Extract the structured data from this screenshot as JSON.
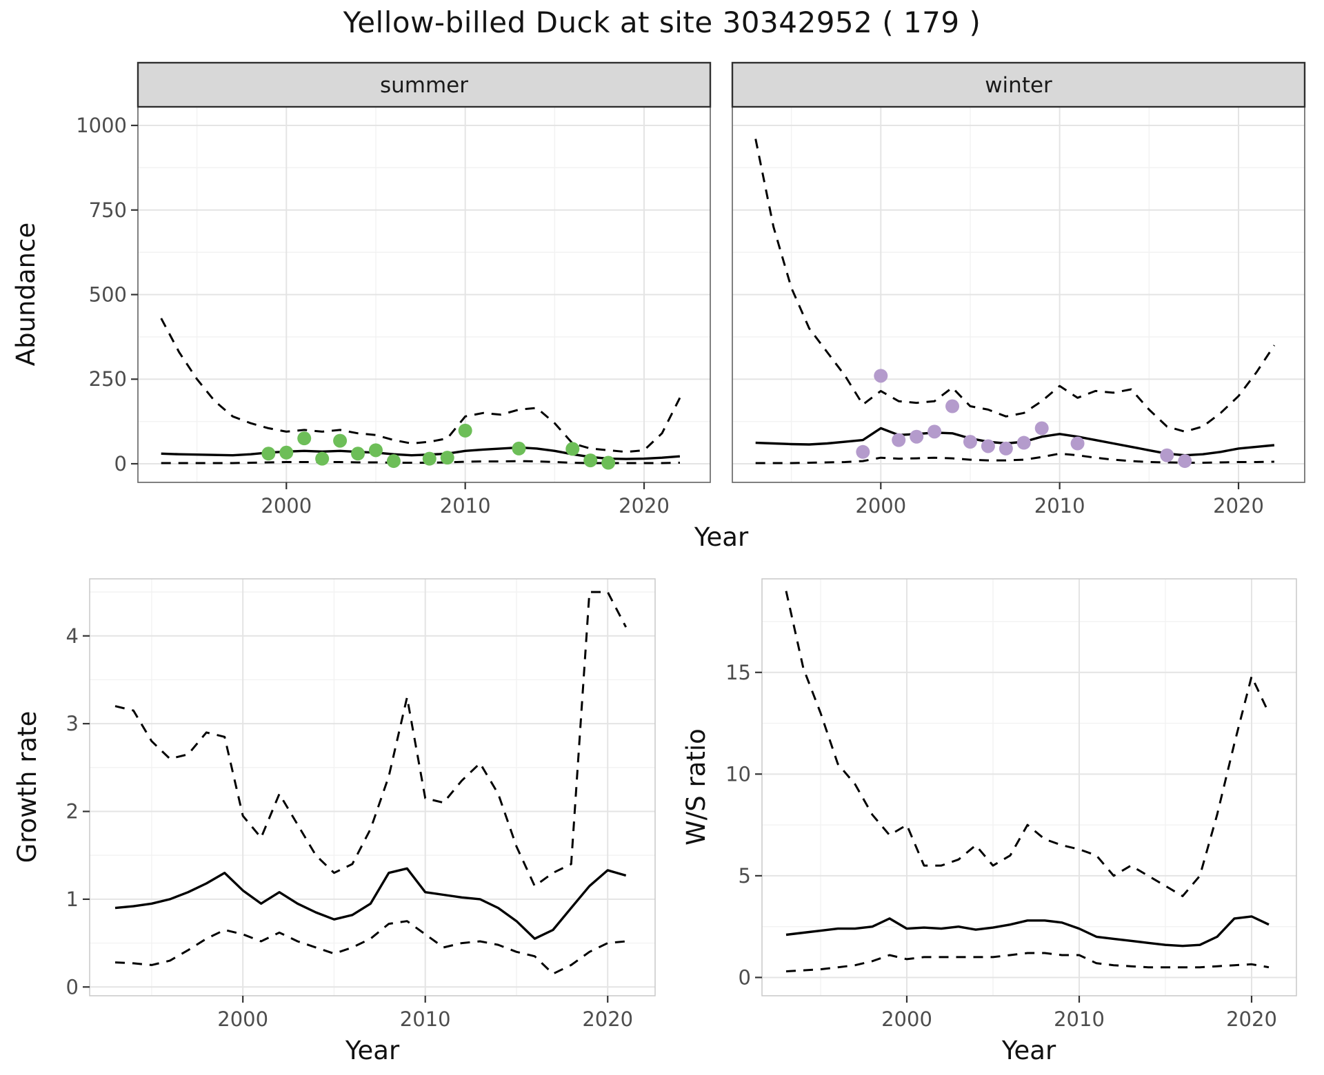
{
  "figure": {
    "title": "Yellow-billed Duck at site 30342952 ( 179 )",
    "colors": {
      "line": "#000000",
      "summer_points": "#6DBE58",
      "winter_points": "#B49BCC",
      "strip_bg": "#D8D8D8",
      "strip_border": "#2F2F2F",
      "panel_border_top": "#6A6A6A",
      "panel_border_bottom": "#C8C8C8",
      "grid_major": "#E4E4E4",
      "grid_minor": "#F2F2F2",
      "tick_mark": "#333333",
      "tick_text": "#4D4D4D",
      "axis_label": "#111111"
    }
  },
  "chart_data": [
    {
      "id": "abundance-summer",
      "type": "line",
      "facet": "summer",
      "title": "",
      "xlabel": "Year",
      "ylabel": "Abundance",
      "xlim": [
        1991.7,
        2023.7
      ],
      "ylim": [
        -55,
        1055
      ],
      "x_ticks": [
        2000,
        2010,
        2020
      ],
      "y_ticks": [
        0,
        250,
        500,
        750,
        1000
      ],
      "x_minor": [
        1995,
        2005,
        2015
      ],
      "y_minor": [
        125,
        375,
        625,
        875
      ],
      "x": [
        1993,
        1994,
        1995,
        1996,
        1997,
        1998,
        1999,
        2000,
        2001,
        2002,
        2003,
        2004,
        2005,
        2006,
        2007,
        2008,
        2009,
        2010,
        2011,
        2012,
        2013,
        2014,
        2015,
        2016,
        2017,
        2018,
        2019,
        2020,
        2021,
        2022
      ],
      "series": [
        {
          "name": "upper_95ci",
          "style": "dashed",
          "color": "#000000",
          "y": [
            430,
            330,
            250,
            185,
            140,
            120,
            105,
            95,
            100,
            95,
            100,
            90,
            85,
            70,
            60,
            65,
            75,
            140,
            150,
            145,
            160,
            165,
            120,
            60,
            45,
            40,
            35,
            40,
            90,
            195
          ]
        },
        {
          "name": "median",
          "style": "solid",
          "color": "#000000",
          "y": [
            30,
            28,
            27,
            26,
            25,
            28,
            33,
            36,
            38,
            36,
            38,
            35,
            33,
            28,
            25,
            27,
            30,
            38,
            42,
            45,
            48,
            45,
            38,
            28,
            20,
            15,
            14,
            15,
            18,
            22
          ]
        },
        {
          "name": "lower_95ci",
          "style": "dashed",
          "color": "#000000",
          "y": [
            2,
            2,
            2,
            2,
            2,
            3,
            4,
            5,
            5,
            5,
            5,
            4,
            4,
            3,
            3,
            3,
            4,
            6,
            7,
            7,
            8,
            7,
            5,
            3,
            2,
            2,
            2,
            2,
            2,
            3
          ]
        },
        {
          "name": "observed_counts",
          "style": "points",
          "color": "#6DBE58",
          "x": [
            1999,
            2000,
            2001,
            2002,
            2003,
            2004,
            2005,
            2006,
            2008,
            2009,
            2010,
            2013,
            2016,
            2017,
            2018
          ],
          "y": [
            30,
            33,
            75,
            15,
            68,
            30,
            40,
            8,
            15,
            18,
            98,
            45,
            44,
            10,
            3
          ]
        }
      ]
    },
    {
      "id": "abundance-winter",
      "type": "line",
      "facet": "winter",
      "title": "",
      "xlabel": "Year",
      "ylabel": "Abundance",
      "xlim": [
        1991.7,
        2023.7
      ],
      "ylim": [
        -55,
        1055
      ],
      "x_ticks": [
        2000,
        2010,
        2020
      ],
      "y_ticks": [
        0,
        250,
        500,
        750,
        1000
      ],
      "x_minor": [
        1995,
        2005,
        2015
      ],
      "y_minor": [
        125,
        375,
        625,
        875
      ],
      "x": [
        1993,
        1994,
        1995,
        1996,
        1997,
        1998,
        1999,
        2000,
        2001,
        2002,
        2003,
        2004,
        2005,
        2006,
        2007,
        2008,
        2009,
        2010,
        2011,
        2012,
        2013,
        2014,
        2015,
        2016,
        2017,
        2018,
        2019,
        2020,
        2021,
        2022
      ],
      "series": [
        {
          "name": "upper_95ci",
          "style": "dashed",
          "color": "#000000",
          "y": [
            960,
            700,
            520,
            400,
            330,
            260,
            175,
            215,
            185,
            180,
            185,
            225,
            170,
            160,
            140,
            150,
            185,
            230,
            195,
            215,
            210,
            220,
            160,
            110,
            95,
            110,
            150,
            200,
            270,
            350
          ]
        },
        {
          "name": "median",
          "style": "solid",
          "color": "#000000",
          "y": [
            62,
            60,
            58,
            57,
            60,
            65,
            70,
            105,
            85,
            88,
            92,
            90,
            75,
            65,
            60,
            65,
            80,
            88,
            80,
            70,
            60,
            50,
            40,
            30,
            25,
            28,
            35,
            45,
            50,
            55
          ]
        },
        {
          "name": "lower_95ci",
          "style": "dashed",
          "color": "#000000",
          "y": [
            2,
            2,
            2,
            3,
            4,
            5,
            8,
            18,
            15,
            16,
            18,
            16,
            12,
            10,
            10,
            12,
            20,
            30,
            25,
            18,
            12,
            8,
            5,
            4,
            3,
            3,
            4,
            5,
            5,
            6
          ]
        },
        {
          "name": "observed_counts",
          "style": "points",
          "color": "#B49BCC",
          "x": [
            1999,
            2000,
            2001,
            2002,
            2003,
            2004,
            2005,
            2006,
            2007,
            2008,
            2009,
            2011,
            2016,
            2017
          ],
          "y": [
            35,
            260,
            70,
            80,
            95,
            170,
            65,
            52,
            45,
            62,
            105,
            60,
            25,
            8
          ]
        }
      ]
    },
    {
      "id": "growth-rate",
      "type": "line",
      "facet": "",
      "title": "",
      "xlabel": "Year",
      "ylabel": "Growth rate",
      "xlim": [
        1991.6,
        2022.6
      ],
      "ylim": [
        -0.1,
        4.65
      ],
      "x_ticks": [
        2000,
        2010,
        2020
      ],
      "y_ticks": [
        0,
        1,
        2,
        3,
        4
      ],
      "x_minor": [
        1995,
        2005,
        2015
      ],
      "y_minor": [
        0.5,
        1.5,
        2.5,
        3.5,
        4.5
      ],
      "x": [
        1993,
        1994,
        1995,
        1996,
        1997,
        1998,
        1999,
        2000,
        2001,
        2002,
        2003,
        2004,
        2005,
        2006,
        2007,
        2008,
        2009,
        2010,
        2011,
        2012,
        2013,
        2014,
        2015,
        2016,
        2017,
        2018,
        2019,
        2020,
        2021
      ],
      "series": [
        {
          "name": "upper_95ci",
          "style": "dashed",
          "color": "#000000",
          "y": [
            3.2,
            3.15,
            2.8,
            2.6,
            2.65,
            2.9,
            2.85,
            1.95,
            1.7,
            2.2,
            1.85,
            1.5,
            1.3,
            1.4,
            1.8,
            2.4,
            3.3,
            2.15,
            2.1,
            2.35,
            2.55,
            2.2,
            1.6,
            1.15,
            1.3,
            1.4,
            4.5,
            4.5,
            4.1
          ]
        },
        {
          "name": "median",
          "style": "solid",
          "color": "#000000",
          "y": [
            0.9,
            0.92,
            0.95,
            1.0,
            1.08,
            1.18,
            1.3,
            1.1,
            0.95,
            1.08,
            0.95,
            0.85,
            0.77,
            0.82,
            0.95,
            1.3,
            1.35,
            1.08,
            1.05,
            1.02,
            1.0,
            0.9,
            0.75,
            0.55,
            0.65,
            0.9,
            1.15,
            1.33,
            1.27
          ]
        },
        {
          "name": "lower_95ci",
          "style": "dashed",
          "color": "#000000",
          "y": [
            0.28,
            0.27,
            0.25,
            0.3,
            0.42,
            0.55,
            0.65,
            0.6,
            0.52,
            0.62,
            0.52,
            0.45,
            0.38,
            0.45,
            0.55,
            0.72,
            0.75,
            0.6,
            0.45,
            0.5,
            0.52,
            0.48,
            0.4,
            0.35,
            0.15,
            0.25,
            0.4,
            0.5,
            0.52
          ]
        }
      ]
    },
    {
      "id": "ws-ratio",
      "type": "line",
      "facet": "",
      "title": "",
      "xlabel": "Year",
      "ylabel": "W/S ratio",
      "xlim": [
        1991.6,
        2022.6
      ],
      "ylim": [
        -0.9,
        19.6
      ],
      "x_ticks": [
        2000,
        2010,
        2020
      ],
      "y_ticks": [
        0,
        5,
        10,
        15
      ],
      "x_minor": [
        1995,
        2005,
        2015
      ],
      "y_minor": [
        2.5,
        7.5,
        12.5,
        17.5
      ],
      "x": [
        1993,
        1994,
        1995,
        1996,
        1997,
        1998,
        1999,
        2000,
        2001,
        2002,
        2003,
        2004,
        2005,
        2006,
        2007,
        2008,
        2009,
        2010,
        2011,
        2012,
        2013,
        2014,
        2015,
        2016,
        2017,
        2018,
        2019,
        2020,
        2021
      ],
      "series": [
        {
          "name": "upper_95ci",
          "style": "dashed",
          "color": "#000000",
          "y": [
            19.0,
            15.2,
            13.0,
            10.5,
            9.5,
            8.0,
            7.0,
            7.5,
            5.5,
            5.5,
            5.8,
            6.5,
            5.5,
            6.0,
            7.5,
            6.8,
            6.5,
            6.3,
            6.0,
            5.0,
            5.5,
            5.0,
            4.5,
            4.0,
            5.0,
            8.0,
            11.5,
            14.8,
            13.0
          ]
        },
        {
          "name": "median",
          "style": "solid",
          "color": "#000000",
          "y": [
            2.1,
            2.2,
            2.3,
            2.4,
            2.4,
            2.5,
            2.9,
            2.4,
            2.45,
            2.4,
            2.5,
            2.35,
            2.45,
            2.6,
            2.8,
            2.8,
            2.7,
            2.4,
            2.0,
            1.9,
            1.8,
            1.7,
            1.6,
            1.55,
            1.6,
            2.0,
            2.9,
            3.0,
            2.6
          ]
        },
        {
          "name": "lower_95ci",
          "style": "dashed",
          "color": "#000000",
          "y": [
            0.3,
            0.35,
            0.4,
            0.5,
            0.6,
            0.8,
            1.1,
            0.9,
            1.0,
            1.0,
            1.0,
            1.0,
            1.0,
            1.1,
            1.2,
            1.2,
            1.1,
            1.1,
            0.7,
            0.6,
            0.55,
            0.5,
            0.5,
            0.5,
            0.5,
            0.55,
            0.6,
            0.65,
            0.5
          ]
        }
      ]
    }
  ]
}
